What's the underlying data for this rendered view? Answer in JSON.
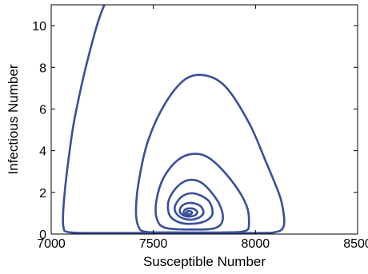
{
  "chart_data": {
    "type": "line",
    "title": "",
    "xlabel": "Susceptible Number",
    "ylabel": "Infectious Number",
    "xlim": [
      7000,
      8500
    ],
    "ylim": [
      0,
      11
    ],
    "xticks": [
      7000,
      7500,
      8000,
      8500
    ],
    "yticks": [
      0,
      2,
      4,
      6,
      8,
      10
    ],
    "grid": false,
    "legend": "none",
    "line_color": "#3a4f9a",
    "series": [
      {
        "points": [
          [
            7260,
            11.0
          ],
          [
            7230,
            10.2
          ],
          [
            7190,
            8.8
          ],
          [
            7150,
            7.2
          ],
          [
            7110,
            5.3
          ],
          [
            7085,
            3.6
          ],
          [
            7066,
            2.0
          ],
          [
            7058,
            0.9
          ],
          [
            7060,
            0.35
          ],
          [
            7080,
            0.1
          ],
          [
            7200,
            0.05
          ],
          [
            7500,
            0.05
          ],
          [
            8000,
            0.05
          ],
          [
            8100,
            0.1
          ],
          [
            8135,
            0.3
          ],
          [
            8140,
            0.8
          ],
          [
            8120,
            1.8
          ],
          [
            8050,
            3.5
          ],
          [
            7970,
            5.3
          ],
          [
            7860,
            7.0
          ],
          [
            7760,
            7.6
          ],
          [
            7660,
            7.45
          ],
          [
            7560,
            6.3
          ],
          [
            7475,
            4.5
          ],
          [
            7430,
            2.6
          ],
          [
            7415,
            1.1
          ],
          [
            7430,
            0.3
          ],
          [
            7470,
            0.1
          ],
          [
            7600,
            0.08
          ],
          [
            7850,
            0.08
          ],
          [
            7950,
            0.15
          ],
          [
            7968,
            0.5
          ],
          [
            7955,
            1.4
          ],
          [
            7880,
            2.6
          ],
          [
            7780,
            3.6
          ],
          [
            7700,
            3.85
          ],
          [
            7620,
            3.55
          ],
          [
            7550,
            2.7
          ],
          [
            7515,
            1.6
          ],
          [
            7518,
            0.7
          ],
          [
            7560,
            0.3
          ],
          [
            7680,
            0.22
          ],
          [
            7800,
            0.28
          ],
          [
            7840,
            0.7
          ],
          [
            7820,
            1.5
          ],
          [
            7745,
            2.4
          ],
          [
            7680,
            2.6
          ],
          [
            7620,
            2.3
          ],
          [
            7575,
            1.6
          ],
          [
            7580,
            0.9
          ],
          [
            7630,
            0.55
          ],
          [
            7700,
            0.5
          ],
          [
            7760,
            0.65
          ],
          [
            7790,
            1.0
          ],
          [
            7770,
            1.6
          ],
          [
            7700,
            1.95
          ],
          [
            7640,
            1.8
          ],
          [
            7605,
            1.3
          ],
          [
            7620,
            0.9
          ],
          [
            7665,
            0.7
          ],
          [
            7715,
            0.75
          ],
          [
            7745,
            1.0
          ],
          [
            7730,
            1.35
          ],
          [
            7680,
            1.5
          ],
          [
            7640,
            1.35
          ],
          [
            7630,
            1.05
          ],
          [
            7660,
            0.85
          ],
          [
            7700,
            0.88
          ],
          [
            7715,
            1.05
          ],
          [
            7695,
            1.22
          ],
          [
            7660,
            1.2
          ],
          [
            7648,
            1.02
          ],
          [
            7668,
            0.92
          ],
          [
            7688,
            0.98
          ],
          [
            7685,
            1.08
          ],
          [
            7668,
            1.1
          ],
          [
            7660,
            1.0
          ],
          [
            7670,
            0.97
          ],
          [
            7675,
            1.0
          ]
        ]
      }
    ]
  }
}
